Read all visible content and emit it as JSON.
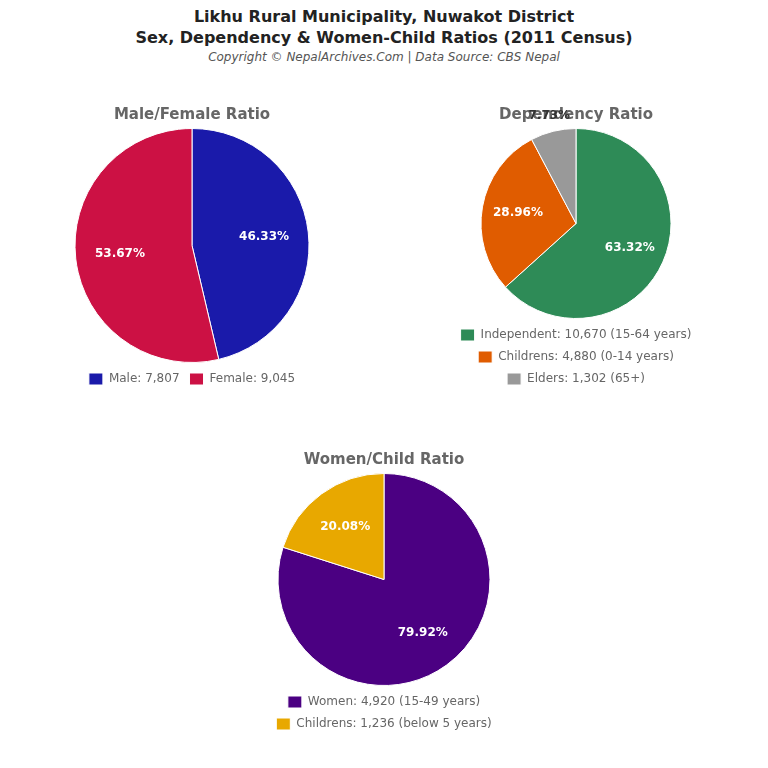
{
  "title": [
    "Likhu Rural Municipality, Nuwakot District",
    "Sex, Dependency & Women-Child Ratios (2011 Census)"
  ],
  "subtitle": "Copyright © NepalArchives.Com | Data Source: CBS Nepal",
  "chart_data": [
    {
      "type": "pie",
      "title": "Male/Female Ratio",
      "categories": [
        "Male: 7,807",
        "Female: 9,045"
      ],
      "values": [
        46.33,
        53.67
      ],
      "value_labels": [
        "46.33%",
        "53.67%"
      ],
      "colors": [
        "#1a1aaa",
        "#cc1144"
      ],
      "data_labels": true,
      "legend": "bottom"
    },
    {
      "type": "pie",
      "title": "Dependency Ratio",
      "categories": [
        "Independent: 10,670 (15-64 years)",
        "Childrens: 4,880 (0-14 years)",
        "Elders: 1,302 (65+)"
      ],
      "values": [
        63.32,
        28.96,
        7.73
      ],
      "value_labels": [
        "63.32%",
        "28.96%",
        "7.73%"
      ],
      "colors": [
        "#2e8b57",
        "#e05c00",
        "#999999"
      ],
      "data_labels": true,
      "legend": "bottom"
    },
    {
      "type": "pie",
      "title": "Women/Child Ratio",
      "categories": [
        "Women: 4,920 (15-49 years)",
        "Childrens: 1,236 (below 5 years)"
      ],
      "values": [
        79.92,
        20.08
      ],
      "value_labels": [
        "79.92%",
        "20.08%"
      ],
      "colors": [
        "#4b0082",
        "#e8a800"
      ],
      "data_labels": true,
      "legend": "bottom"
    }
  ]
}
